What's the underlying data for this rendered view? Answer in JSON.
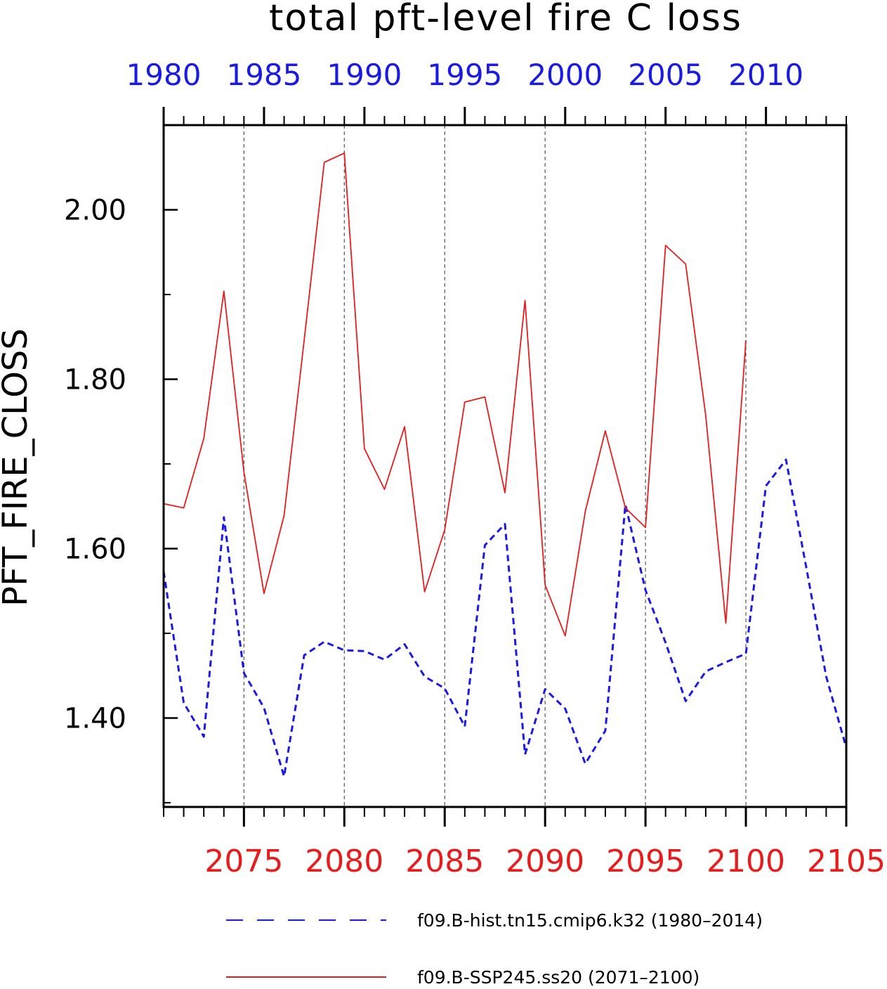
{
  "chart_data": {
    "type": "line",
    "title": "total pft-level fire C loss",
    "ylabel": "PFT_FIRE_CLOSS",
    "ylim": [
      1.295,
      2.1
    ],
    "yticks": [
      "1.40",
      "1.60",
      "1.80",
      "2.00"
    ],
    "grid": "vertical dashed at major x ticks",
    "legend_placement": "below plot",
    "top_axis": {
      "color": "#1a1ae6",
      "xlim": [
        1980,
        2014
      ],
      "ticks": [
        "1980",
        "1985",
        "1990",
        "1995",
        "2000",
        "2005",
        "2010"
      ]
    },
    "bottom_axis": {
      "color": "#e81c1c",
      "xlim": [
        2071,
        2105
      ],
      "ticks": [
        "2075",
        "2080",
        "2085",
        "2090",
        "2095",
        "2100",
        "2105"
      ]
    },
    "series": [
      {
        "name": "f09.B-hist.tn15.cmip6.k32 (1980–2014)",
        "axis": "top",
        "color": "#1a1ae6",
        "style": "dashed",
        "x": [
          1980,
          1981,
          1982,
          1983,
          1984,
          1985,
          1986,
          1987,
          1988,
          1989,
          1990,
          1991,
          1992,
          1993,
          1994,
          1995,
          1996,
          1997,
          1998,
          1999,
          2000,
          2001,
          2002,
          2003,
          2004,
          2005,
          2006,
          2007,
          2008,
          2009,
          2010,
          2011,
          2012,
          2013,
          2014
        ],
        "values": [
          1.573,
          1.418,
          1.378,
          1.637,
          1.453,
          1.412,
          1.331,
          1.474,
          1.49,
          1.48,
          1.479,
          1.469,
          1.487,
          1.449,
          1.435,
          1.39,
          1.604,
          1.629,
          1.357,
          1.434,
          1.411,
          1.346,
          1.385,
          1.652,
          1.551,
          1.489,
          1.42,
          1.455,
          1.466,
          1.476,
          1.674,
          1.705,
          1.579,
          1.449,
          1.365
        ]
      },
      {
        "name": "f09.B-SSP245.ss20 (2071–2100)",
        "axis": "bottom",
        "color": "#e81c1c",
        "style": "solid",
        "x": [
          2071,
          2072,
          2073,
          2074,
          2075,
          2076,
          2077,
          2078,
          2079,
          2080,
          2081,
          2082,
          2083,
          2084,
          2085,
          2086,
          2087,
          2088,
          2089,
          2090,
          2091,
          2092,
          2093,
          2094,
          2095,
          2096,
          2097,
          2098,
          2099,
          2100
        ],
        "values": [
          1.653,
          1.648,
          1.73,
          1.904,
          1.69,
          1.547,
          1.639,
          1.846,
          2.056,
          2.067,
          1.718,
          1.67,
          1.744,
          1.549,
          1.622,
          1.773,
          1.779,
          1.666,
          1.893,
          1.557,
          1.497,
          1.644,
          1.739,
          1.648,
          1.625,
          1.958,
          1.936,
          1.757,
          1.512,
          1.846
        ]
      }
    ]
  }
}
